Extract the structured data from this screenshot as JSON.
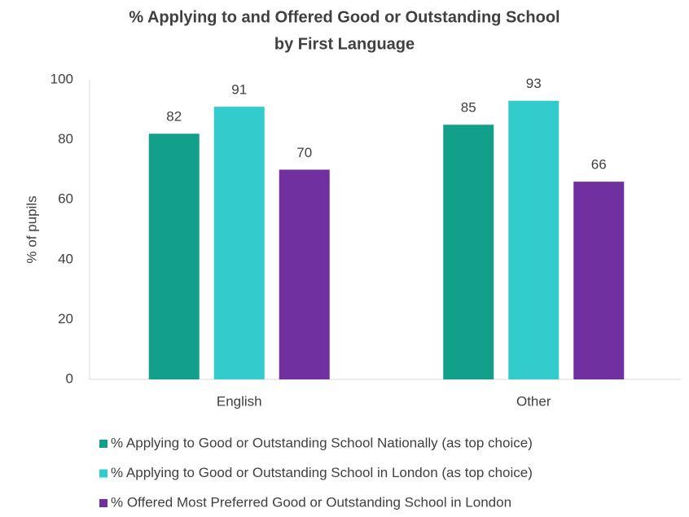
{
  "chart_data": {
    "type": "bar",
    "title": [
      "% Applying to and Offered Good or Outstanding School",
      "by First Language"
    ],
    "y_label": "% of pupils",
    "categories": [
      "English",
      "Other"
    ],
    "series": [
      {
        "name": "% Applying to Good or Outstanding School Nationally (as top choice)",
        "color": "#13a08a",
        "values": [
          82,
          85
        ]
      },
      {
        "name": "% Applying to Good or Outstanding School in London (as top choice)",
        "color": "#33cccc",
        "values": [
          91,
          93
        ]
      },
      {
        "name": "% Offered Most Preferred Good or Outstanding School in London",
        "color": "#7030a0",
        "values": [
          70,
          66
        ]
      }
    ],
    "ylim": [
      0,
      100
    ],
    "yticks": [
      0,
      20,
      40,
      60,
      80,
      100
    ],
    "grid": false,
    "legend": "bottom"
  }
}
